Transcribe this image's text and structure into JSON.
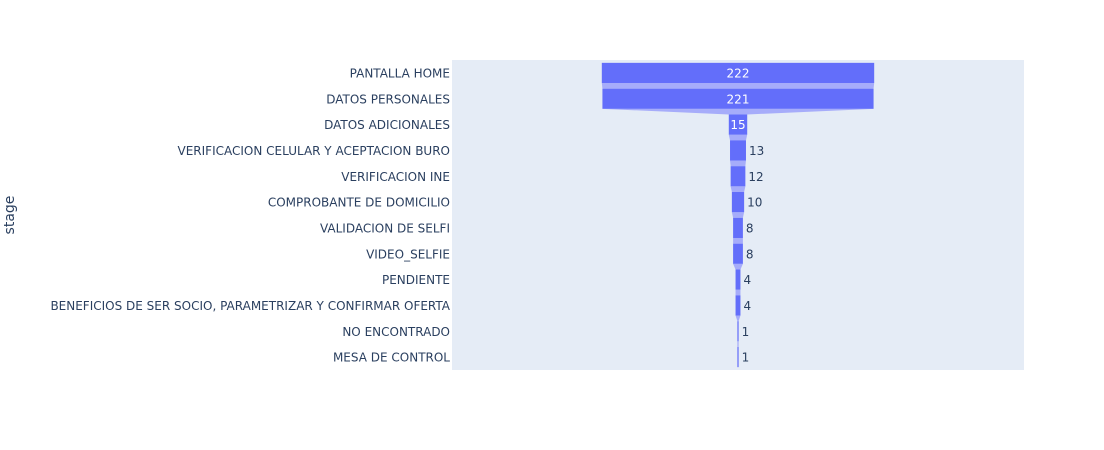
{
  "chart_data": {
    "type": "funnel",
    "ylabel": "stage",
    "stages": [
      "PANTALLA HOME",
      "DATOS PERSONALES",
      "DATOS ADICIONALES",
      "VERIFICACION CELULAR Y ACEPTACION BURO",
      "VERIFICACION INE",
      "COMPROBANTE DE DOMICILIO",
      "VALIDACION DE SELFI",
      "VIDEO_SELFIE",
      "PENDIENTE",
      "BENEFICIOS DE SER SOCIO, PARAMETRIZAR Y CONFIRMAR OFERTA",
      "NO ENCONTRADO",
      "MESA DE CONTROL"
    ],
    "values": [
      222,
      221,
      15,
      13,
      12,
      10,
      8,
      8,
      4,
      4,
      1,
      1
    ],
    "xlim": [
      -233.1,
      233.1
    ],
    "colors": {
      "bar": "#636efa",
      "connector": "#a6acfa",
      "plot_bg": "#e5ecf6",
      "label_inside": "#ffffff",
      "label_outside": "#2a3f5f"
    }
  }
}
